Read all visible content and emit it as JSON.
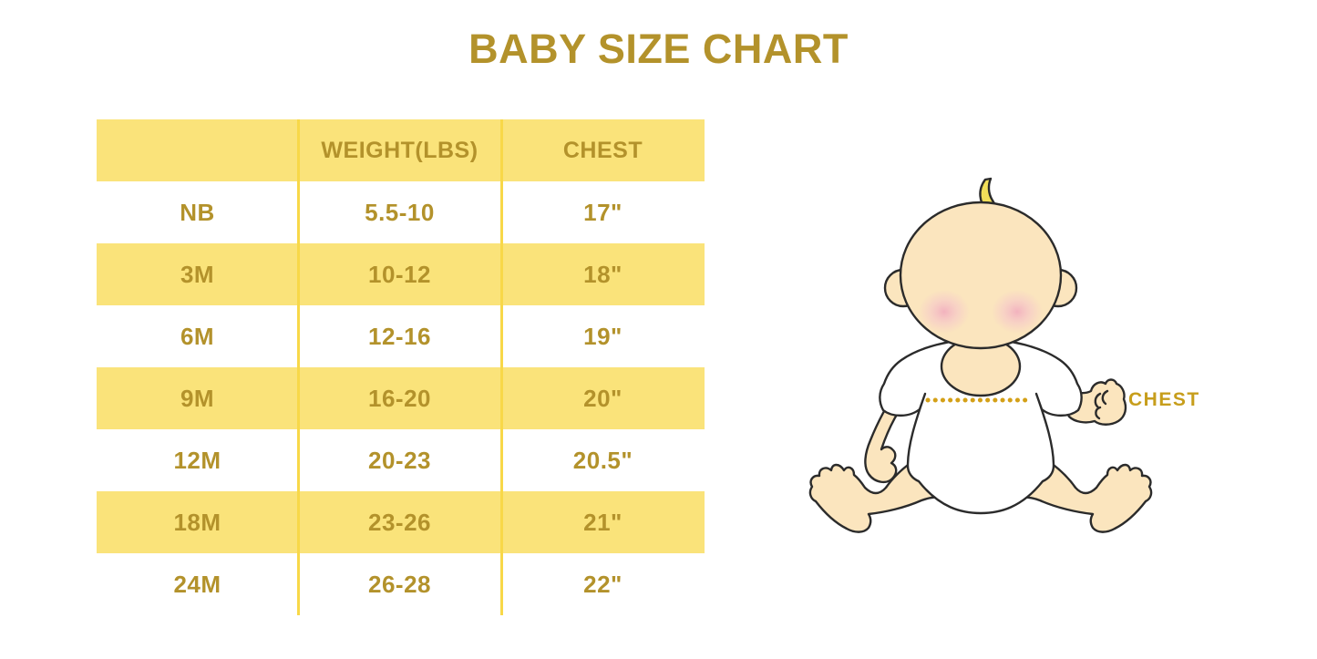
{
  "title": "BABY SIZE CHART",
  "size_table": {
    "columns": [
      "",
      "WEIGHT(LBS)",
      "CHEST"
    ],
    "rows": [
      {
        "size": "NB",
        "weight": "5.5-10",
        "chest": "17\""
      },
      {
        "size": "3M",
        "weight": "10-12",
        "chest": "18\""
      },
      {
        "size": "6M",
        "weight": "12-16",
        "chest": "19\""
      },
      {
        "size": "9M",
        "weight": "16-20",
        "chest": "20\""
      },
      {
        "size": "12M",
        "weight": "20-23",
        "chest": "20.5\""
      },
      {
        "size": "18M",
        "weight": "23-26",
        "chest": "21\""
      },
      {
        "size": "24M",
        "weight": "26-28",
        "chest": "22\""
      }
    ]
  },
  "illustration": {
    "chest_label": "CHEST"
  },
  "chart_data": {
    "type": "table",
    "title": "BABY SIZE CHART",
    "columns": [
      "",
      "WEIGHT(LBS)",
      "CHEST"
    ],
    "rows": [
      [
        "NB",
        "5.5-10",
        "17\""
      ],
      [
        "3M",
        "10-12",
        "18\""
      ],
      [
        "6M",
        "12-16",
        "19\""
      ],
      [
        "9M",
        "16-20",
        "20\""
      ],
      [
        "12M",
        "20-23",
        "20.5\""
      ],
      [
        "18M",
        "23-26",
        "21\""
      ],
      [
        "24M",
        "26-28",
        "22\""
      ]
    ],
    "layout_hints": {
      "alternating_row_fill": true,
      "header_fill_same_as_alt_rows": true
    }
  },
  "colors": {
    "background": "#FFFFFF",
    "title_gold": "#B3922B",
    "table_text_gold": "#B3922B",
    "row_yellow": "#FAE37A",
    "divider_yellow": "#F8D848",
    "chest_label_gold": "#C79E1C",
    "dotted_line_gold": "#D4A017",
    "baby_skin": "#FBE5BE",
    "baby_hair_yellow": "#F2DF59",
    "baby_blush_pink": "#F1A9BE",
    "baby_outline": "#2B2B2B",
    "shirt_white": "#FFFFFF"
  }
}
